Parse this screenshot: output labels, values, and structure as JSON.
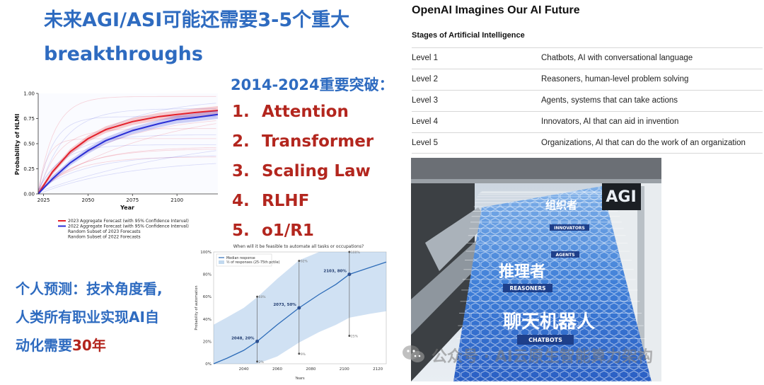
{
  "title": {
    "line1": "未来AGI/ASI可能还需要3-5个重大",
    "line2": "breakthroughs"
  },
  "breakthroughs": {
    "heading": "2014-2024重要突破：",
    "items": [
      {
        "num": "1.",
        "label": "Attention"
      },
      {
        "num": "2.",
        "label": "Transformer"
      },
      {
        "num": "3.",
        "label": "Scaling Law"
      },
      {
        "num": "4.",
        "label": "RLHF"
      },
      {
        "num": "5.",
        "label": "o1/R1"
      }
    ]
  },
  "prediction": {
    "line1": "个人预测：技术角度看,",
    "line2": "人类所有职业实现AI自",
    "line3_prefix": "动化需要",
    "line3_highlight": "30年"
  },
  "hlmi_chart": {
    "ylabel": "Probability of HLMI",
    "xlabel": "Year",
    "yticks": [
      "0.00",
      "0.25",
      "0.50",
      "0.75",
      "1.00"
    ],
    "xticks": [
      "2025",
      "2050",
      "2075",
      "2100"
    ],
    "legend": [
      {
        "label": "2023 Aggregate Forecast (with 95% Confidence Interval)",
        "color": "#e4202a"
      },
      {
        "label": "2022 Aggregate Forecast (with 95% Confidence Interval)",
        "color": "#2a2fd6"
      },
      {
        "label": "Random Subset of 2023 Forecasts",
        "color": ""
      },
      {
        "label": "Random Subset of 2022 Forecasts",
        "color": ""
      }
    ]
  },
  "chart_data": [
    {
      "type": "line",
      "ylabel": "Probability of HLMI",
      "xlabel": "Year",
      "xlim": [
        2022,
        2123
      ],
      "ylim": [
        0,
        1
      ],
      "series": [
        {
          "name": "2023 Aggregate Forecast (with 95% Confidence Interval)",
          "x": [
            2022,
            2030,
            2040,
            2050,
            2060,
            2075,
            2090,
            2100,
            2110,
            2123
          ],
          "y": [
            0.0,
            0.22,
            0.42,
            0.55,
            0.64,
            0.72,
            0.77,
            0.79,
            0.81,
            0.83
          ]
        },
        {
          "name": "2022 Aggregate Forecast (with 95% Confidence Interval)",
          "x": [
            2022,
            2030,
            2040,
            2050,
            2060,
            2075,
            2090,
            2100,
            2110,
            2123
          ],
          "y": [
            0.0,
            0.15,
            0.31,
            0.43,
            0.53,
            0.63,
            0.7,
            0.74,
            0.76,
            0.79
          ]
        }
      ]
    },
    {
      "type": "line",
      "title": "When will it be feasible to automate all tasks or occupations?",
      "ylabel": "Probability of automation",
      "xlabel": "Years",
      "xlim": [
        2022,
        2125
      ],
      "ylim": [
        0,
        100
      ],
      "yticks": [
        "0%",
        "20%",
        "40%",
        "60%",
        "80%",
        "100%"
      ],
      "xticks": [
        "2040",
        "2060",
        "2080",
        "2100",
        "2120"
      ],
      "legend": [
        "Median response",
        "½ of responses (25-75th pctile)"
      ],
      "annotations": [
        {
          "x": 2048,
          "y": 20,
          "label": "2048, 20%",
          "lo": "2%",
          "hi": "60%"
        },
        {
          "x": 2073,
          "y": 50,
          "label": "2073, 50%",
          "lo": "9%",
          "hi": "92%"
        },
        {
          "x": 2103,
          "y": 80,
          "label": "2103, 80%",
          "lo": "25%",
          "hi": "100%"
        }
      ],
      "series": [
        {
          "name": "Median response",
          "x": [
            2022,
            2030,
            2040,
            2048,
            2060,
            2073,
            2085,
            2095,
            2103,
            2115,
            2125
          ],
          "y": [
            0,
            5,
            12,
            20,
            35,
            50,
            62,
            71,
            80,
            86,
            91
          ]
        }
      ]
    }
  ],
  "openai": {
    "title": "OpenAI Imagines Our AI Future",
    "subtitle": "Stages of Artificial Intelligence",
    "rows": [
      {
        "level": "Level 1",
        "desc": "Chatbots, AI with conversational language"
      },
      {
        "level": "Level 2",
        "desc": "Reasoners, human-level problem solving"
      },
      {
        "level": "Level 3",
        "desc": "Agents, systems that can take actions"
      },
      {
        "level": "Level 4",
        "desc": "Innovators, AI that can aid in invention"
      },
      {
        "level": "Level 5",
        "desc": "Organizations, AI that can do the work of an organization"
      }
    ]
  },
  "photo": {
    "sign_agi": "AGI",
    "sign_org": "组织者",
    "sign_innovators": "INNOVATORS",
    "sign_agents": "AGENTS",
    "sign_reasoner_cn": "推理者",
    "sign_reasoners": "REASONERS",
    "sign_chatbot_cn": "聊天机器人",
    "sign_chatbots": "CHATBOTS"
  },
  "watermark": "公众号 · AI云原生智能算力架构"
}
